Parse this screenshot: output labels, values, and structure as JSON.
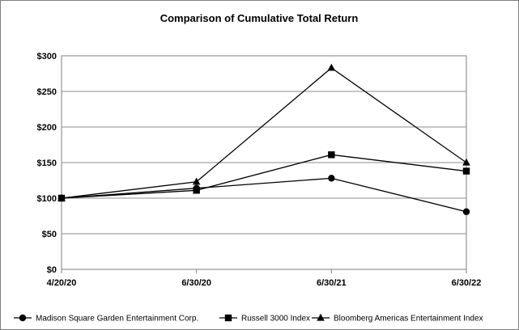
{
  "chart_data": {
    "type": "line",
    "title": "Comparison of Cumulative Total Return",
    "xlabel": "",
    "ylabel": "",
    "categories": [
      "4/20/20",
      "6/30/20",
      "6/30/21",
      "6/30/22"
    ],
    "y_tick_labels": [
      "$0",
      "$50",
      "$100",
      "$150",
      "$200",
      "$250",
      "$300"
    ],
    "y_ticks": [
      0,
      50,
      100,
      150,
      200,
      250,
      300
    ],
    "ylim": [
      0,
      300
    ],
    "grid": true,
    "legend_position": "bottom",
    "series": [
      {
        "name": "Madison Square Garden Entertainment Corp.",
        "marker": "circle",
        "color": "#000000",
        "values": [
          100,
          114,
          128,
          81
        ]
      },
      {
        "name": "Russell 3000 Index",
        "marker": "square",
        "color": "#000000",
        "values": [
          100,
          111,
          161,
          138
        ]
      },
      {
        "name": "Bloomberg Americas Entertainment Index",
        "marker": "triangle",
        "color": "#000000",
        "values": [
          100,
          123,
          283,
          150
        ]
      }
    ]
  }
}
